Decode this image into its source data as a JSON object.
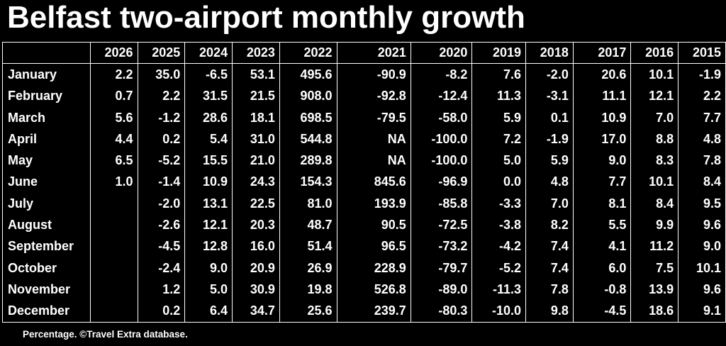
{
  "chart_data": {
    "type": "table",
    "title": "Belfast two-airport monthly growth",
    "note": "Percentage. ©Travel Extra database.",
    "columns": [
      "2026",
      "2025",
      "2024",
      "2023",
      "2022",
      "2021",
      "2020",
      "2019",
      "2018",
      "2017",
      "2016",
      "2015"
    ],
    "rows": [
      {
        "label": "January",
        "values": [
          "2.2",
          "35.0",
          "-6.5",
          "53.1",
          "495.6",
          "-90.9",
          "-8.2",
          "7.6",
          "-2.0",
          "20.6",
          "10.1",
          "-1.9"
        ]
      },
      {
        "label": "February",
        "values": [
          "0.7",
          "2.2",
          "31.5",
          "21.5",
          "908.0",
          "-92.8",
          "-12.4",
          "11.3",
          "-3.1",
          "11.1",
          "12.1",
          "2.2"
        ]
      },
      {
        "label": "March",
        "values": [
          "5.6",
          "-1.2",
          "28.6",
          "18.1",
          "698.5",
          "-79.5",
          "-58.0",
          "5.9",
          "0.1",
          "10.9",
          "7.0",
          "7.7"
        ]
      },
      {
        "label": "April",
        "values": [
          "4.4",
          "0.2",
          "5.4",
          "31.0",
          "544.8",
          "NA",
          "-100.0",
          "7.2",
          "-1.9",
          "17.0",
          "8.8",
          "4.8"
        ]
      },
      {
        "label": "May",
        "values": [
          "6.5",
          "-5.2",
          "15.5",
          "21.0",
          "289.8",
          "NA",
          "-100.0",
          "5.0",
          "5.9",
          "9.0",
          "8.3",
          "7.8"
        ]
      },
      {
        "label": "June",
        "values": [
          "1.0",
          "-1.4",
          "10.9",
          "24.3",
          "154.3",
          "845.6",
          "-96.9",
          "0.0",
          "4.8",
          "7.7",
          "10.1",
          "8.4"
        ]
      },
      {
        "label": "July",
        "values": [
          "",
          "-2.0",
          "13.1",
          "22.5",
          "81.0",
          "193.9",
          "-85.8",
          "-3.3",
          "7.0",
          "8.1",
          "8.4",
          "9.5"
        ]
      },
      {
        "label": "August",
        "values": [
          "",
          "-2.6",
          "12.1",
          "20.3",
          "48.7",
          "90.5",
          "-72.5",
          "-3.8",
          "8.2",
          "5.5",
          "9.9",
          "9.6"
        ]
      },
      {
        "label": "September",
        "values": [
          "",
          "-4.5",
          "12.8",
          "16.0",
          "51.4",
          "96.5",
          "-73.2",
          "-4.2",
          "7.4",
          "4.1",
          "11.2",
          "9.0"
        ]
      },
      {
        "label": "October",
        "values": [
          "",
          "-2.4",
          "9.0",
          "20.9",
          "26.9",
          "228.9",
          "-79.7",
          "-5.2",
          "7.4",
          "6.0",
          "7.5",
          "10.1"
        ]
      },
      {
        "label": "November",
        "values": [
          "",
          "1.2",
          "5.0",
          "30.9",
          "19.8",
          "526.8",
          "-89.0",
          "-11.3",
          "7.8",
          "-0.8",
          "13.9",
          "9.6"
        ]
      },
      {
        "label": "December",
        "values": [
          "",
          "0.2",
          "6.4",
          "34.7",
          "25.6",
          "239.7",
          "-80.3",
          "-10.0",
          "9.8",
          "-4.5",
          "18.6",
          "9.1"
        ]
      }
    ]
  }
}
